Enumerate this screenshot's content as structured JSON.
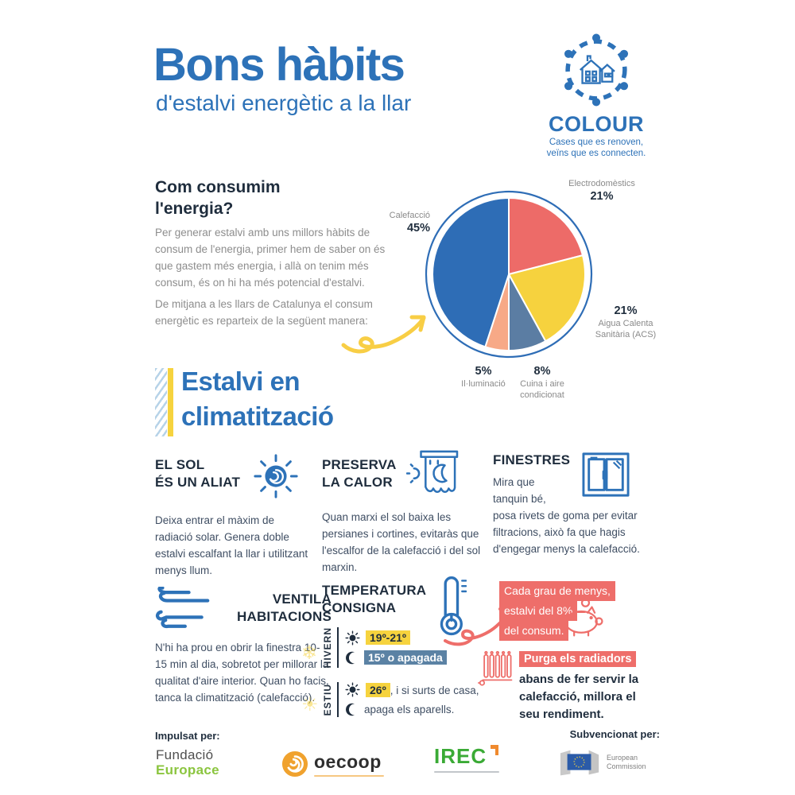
{
  "header": {
    "title": "Bons hàbits",
    "subtitle": "d'estalvi energètic a la llar"
  },
  "logo": {
    "name": "COLOUR",
    "tagline1": "Cases que es renoven,",
    "tagline2": "veïns que es connecten."
  },
  "consum": {
    "heading1": "Com consumim",
    "heading2": "l'energia?",
    "para1": "Per generar estalvi amb uns millors hàbits de consum de l'energia, primer hem de saber on és que gastem més energia, i allà on tenim més consum, és on hi ha més potencial d'estalvi.",
    "para2": "De mitjana a les llars de Catalunya el consum energètic es reparteix de la següent manera:"
  },
  "chart_data": {
    "type": "pie",
    "start_angle_deg": -90,
    "direction": "clockwise",
    "unit": "%",
    "slices": [
      {
        "label": "Electrodomèstics",
        "value": 21,
        "pct": "21%",
        "color": "#ed6b68"
      },
      {
        "label": "Aigua Calenta Sanitària (ACS)",
        "value": 21,
        "pct": "21%",
        "color": "#f6d23e"
      },
      {
        "label": "Cuina i aire condicionat",
        "value": 8,
        "pct": "8%",
        "color": "#5b7da3"
      },
      {
        "label": "Il·luminació",
        "value": 5,
        "pct": "5%",
        "color": "#f7a987"
      },
      {
        "label": "Calefacció",
        "value": 45,
        "pct": "45%",
        "color": "#2e6db6"
      }
    ]
  },
  "section": {
    "heading1": "Estalvi en",
    "heading2": "climatització"
  },
  "tips": {
    "sol": {
      "title1": "EL SOL",
      "title2": "ÉS UN ALIAT",
      "body": "Deixa entrar el màxim de radiació solar. Genera doble estalvi escalfant la llar i utilitzant menys llum."
    },
    "preserva": {
      "title1": "PRESERVA",
      "title2": "LA CALOR",
      "body": "Quan marxi el sol baixa les persianes i cortines, evitaràs que l'escalfor de la calefacció i del sol marxin."
    },
    "finestres": {
      "title": "FINESTRES",
      "body1": "Mira que tanquin bé,",
      "body2": "posa rivets de goma per evitar filtracions, això fa que hagis d'engegar menys la calefacció."
    },
    "ventila": {
      "title1": "VENTILA",
      "title2": "HABITACIONS",
      "body": "N'hi ha prou en obrir la finestra 10-15 min al dia, sobretot per millorar la qualitat d'aire interior. Quan ho facis, tanca la climatització (calefacció)."
    },
    "temperatura": {
      "title1": "TEMPERATURA",
      "title2": "CONSIGNA",
      "hivern_label": "HIVERN",
      "hivern_day": "19º-21º",
      "hivern_night": "15º o apagada",
      "estiu_label": "ESTIU",
      "estiu_day_chip": "26º",
      "estiu_day_rest": ", i si surts de casa,",
      "estiu_night": "apaga els aparells."
    }
  },
  "boxes": {
    "grau_line1": "Cada grau de menys,",
    "grau_line2": "estalvi del 8%",
    "grau_line3": "del consum.",
    "purga_highlight": "Purga els radiadors",
    "purga_rest": "abans de fer servir la calefacció, millora el seu rendiment."
  },
  "footer": {
    "impulsat": "Impulsat per:",
    "subvencionat": "Subvencionat per:",
    "europace1": "Fundació",
    "europace2": "Europace",
    "oecoop": "oecoop",
    "irec": "IREC",
    "eu1": "European",
    "eu2": "Commission"
  },
  "colors": {
    "brand_blue": "#2d72b8",
    "dark_navy": "#1f2d3d",
    "body_gray": "#8d8d8d",
    "accent_red": "#ee6e6a",
    "accent_yellow": "#f6d33e",
    "accent_slate": "#5b82a4",
    "green_europace": "#8bc53f",
    "green_irec": "#3aaa35",
    "orange_oecoop": "#f0a22e"
  }
}
